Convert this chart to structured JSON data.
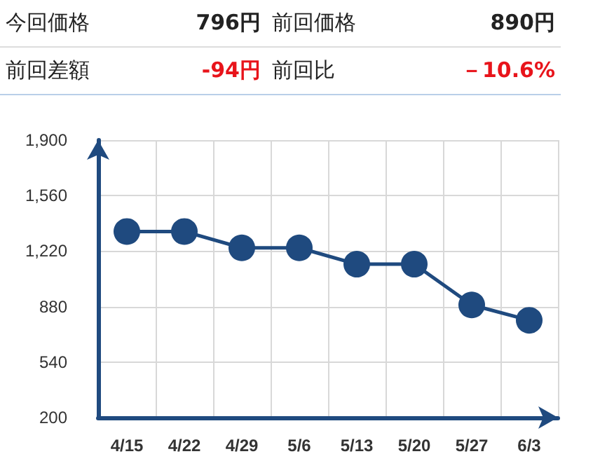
{
  "chart_data": {
    "type": "line",
    "annotations": [
      "今回価格",
      "796円",
      "前回価格",
      "890円",
      "前回差額",
      "-94円",
      "前回比",
      "－10.6%"
    ],
    "categories": [
      "4/15",
      "4/22",
      "4/29",
      "5/6",
      "5/13",
      "5/20",
      "5/27",
      "6/3"
    ],
    "series": [
      {
        "color": "#1f4a7f",
        "values": [
          1340,
          1340,
          1240,
          1240,
          1140,
          1140,
          890,
          796
        ]
      }
    ],
    "ylim": [
      200,
      1900
    ],
    "yticks": [
      200,
      540,
      880,
      {
        "value": 1220,
        "label": "1,220"
      },
      {
        "value": 1560,
        "label": "1,560"
      },
      {
        "value": 1900,
        "label": "1,900"
      }
    ],
    "grid": true,
    "marker": "circle",
    "line_style": "solid"
  }
}
